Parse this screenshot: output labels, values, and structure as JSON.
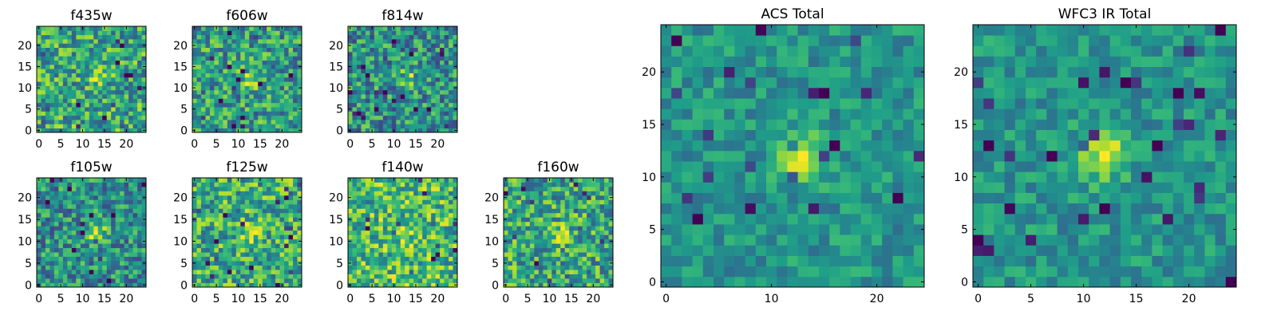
{
  "chart_data": [
    {
      "type": "heatmap",
      "title": "f435w",
      "colormap": "viridis",
      "x_ticks": [
        0,
        5,
        10,
        15,
        20
      ],
      "y_ticks": [
        0,
        5,
        10,
        15,
        20
      ],
      "grid_size": 25,
      "xlim": [
        -0.5,
        24.5
      ],
      "ylim": [
        -0.5,
        24.5
      ],
      "source_center": [
        13,
        12
      ],
      "source_strength": 0.15,
      "noise_level": 0.3,
      "background_level": 0.6,
      "seed": 435
    },
    {
      "type": "heatmap",
      "title": "f606w",
      "colormap": "viridis",
      "x_ticks": [
        0,
        5,
        10,
        15,
        20
      ],
      "y_ticks": [
        0,
        5,
        10,
        15,
        20
      ],
      "grid_size": 25,
      "xlim": [
        -0.5,
        24.5
      ],
      "ylim": [
        -0.5,
        24.5
      ],
      "source_center": [
        13,
        12
      ],
      "source_strength": 0.35,
      "noise_level": 0.3,
      "background_level": 0.55,
      "seed": 606
    },
    {
      "type": "heatmap",
      "title": "f814w",
      "colormap": "viridis",
      "x_ticks": [
        0,
        5,
        10,
        15,
        20
      ],
      "y_ticks": [
        0,
        5,
        10,
        15,
        20
      ],
      "grid_size": 25,
      "xlim": [
        -0.5,
        24.5
      ],
      "ylim": [
        -0.5,
        24.5
      ],
      "source_center": [
        13,
        12
      ],
      "source_strength": 0.4,
      "noise_level": 0.3,
      "background_level": 0.5,
      "seed": 814
    },
    {
      "type": "heatmap",
      "title": "f105w",
      "colormap": "viridis",
      "x_ticks": [
        0,
        5,
        10,
        15,
        20
      ],
      "y_ticks": [
        0,
        5,
        10,
        15,
        20
      ],
      "grid_size": 25,
      "xlim": [
        -0.5,
        24.5
      ],
      "ylim": [
        -0.5,
        24.5
      ],
      "source_center": [
        13,
        12
      ],
      "source_strength": 0.45,
      "noise_level": 0.28,
      "background_level": 0.5,
      "seed": 105
    },
    {
      "type": "heatmap",
      "title": "f125w",
      "colormap": "viridis",
      "x_ticks": [
        0,
        5,
        10,
        15,
        20
      ],
      "y_ticks": [
        0,
        5,
        10,
        15,
        20
      ],
      "grid_size": 25,
      "xlim": [
        -0.5,
        24.5
      ],
      "ylim": [
        -0.5,
        24.5
      ],
      "source_center": [
        13,
        12
      ],
      "source_strength": 0.25,
      "noise_level": 0.3,
      "background_level": 0.62,
      "seed": 125
    },
    {
      "type": "heatmap",
      "title": "f140w",
      "colormap": "viridis",
      "x_ticks": [
        0,
        5,
        10,
        15,
        20
      ],
      "y_ticks": [
        0,
        5,
        10,
        15,
        20
      ],
      "grid_size": 25,
      "xlim": [
        -0.5,
        24.5
      ],
      "ylim": [
        -0.5,
        24.5
      ],
      "source_center": [
        13,
        12
      ],
      "source_strength": 0.2,
      "noise_level": 0.3,
      "background_level": 0.68,
      "seed": 140
    },
    {
      "type": "heatmap",
      "title": "f160w",
      "colormap": "viridis",
      "x_ticks": [
        0,
        5,
        10,
        15,
        20
      ],
      "y_ticks": [
        0,
        5,
        10,
        15,
        20
      ],
      "grid_size": 25,
      "xlim": [
        -0.5,
        24.5
      ],
      "ylim": [
        -0.5,
        24.5
      ],
      "source_center": [
        13,
        12
      ],
      "source_strength": 0.25,
      "noise_level": 0.3,
      "background_level": 0.6,
      "seed": 160
    },
    {
      "type": "heatmap",
      "title": "ACS Total",
      "colormap": "viridis",
      "x_ticks": [
        0,
        10,
        20
      ],
      "y_ticks": [
        0,
        5,
        10,
        15,
        20
      ],
      "grid_size": 25,
      "xlim": [
        -0.5,
        24.5
      ],
      "ylim": [
        -0.5,
        24.5
      ],
      "source_center": [
        13,
        12
      ],
      "source_strength": 0.45,
      "noise_level": 0.16,
      "background_level": 0.52,
      "seed": 1001
    },
    {
      "type": "heatmap",
      "title": "WFC3 IR Total",
      "colormap": "viridis",
      "x_ticks": [
        0,
        5,
        10,
        15,
        20
      ],
      "y_ticks": [
        0,
        5,
        10,
        15,
        20
      ],
      "grid_size": 25,
      "xlim": [
        -0.5,
        24.5
      ],
      "ylim": [
        -0.5,
        24.5
      ],
      "source_center": [
        12,
        12
      ],
      "source_strength": 0.45,
      "noise_level": 0.16,
      "background_level": 0.52,
      "seed": 2002
    }
  ]
}
